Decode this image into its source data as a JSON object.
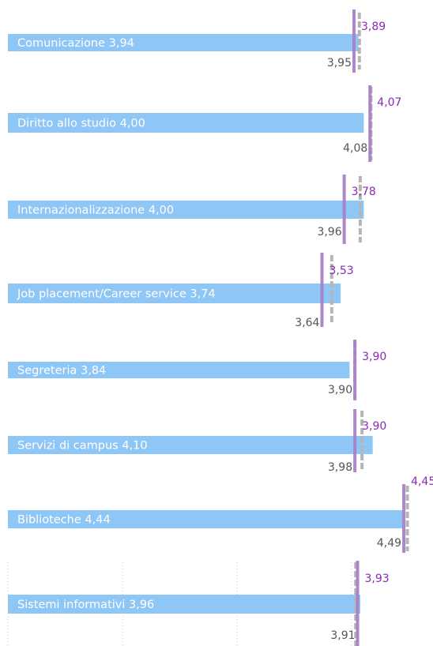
{
  "chart_data": {
    "type": "bar",
    "orientation": "horizontal",
    "grid": "vertical dotted (last panel only)",
    "colors": {
      "bar": "#8ec6f6",
      "purple_marker": "#a97fc8",
      "purple_text": "#8a2bb3",
      "grey_marker": "#b5b5b5",
      "grey_text": "#555555"
    },
    "rows": [
      {
        "label": "Comunicazione 3,94",
        "category": "Comunicazione",
        "bar_value": 3.94,
        "purple_value": 3.89,
        "purple_label": "3,89",
        "grey_value": 3.95,
        "grey_label": "3,95"
      },
      {
        "label": "Diritto allo studio 4,00",
        "category": "Diritto allo studio",
        "bar_value": 4.0,
        "purple_value": 4.07,
        "purple_label": "4,07",
        "grey_value": 4.08,
        "grey_label": "4,08"
      },
      {
        "label": "Internazionalizzazione 4,00",
        "category": "Internazionalizzazione",
        "bar_value": 4.0,
        "purple_value": 3.78,
        "purple_label": "3,78",
        "grey_value": 3.96,
        "grey_label": "3,96"
      },
      {
        "label": "Job placement/Career service 3,74",
        "category": "Job placement/Career service",
        "bar_value": 3.74,
        "purple_value": 3.53,
        "purple_label": "3,53",
        "grey_value": 3.64,
        "grey_label": "3,64"
      },
      {
        "label": "Segreteria 3,84",
        "category": "Segreteria",
        "bar_value": 3.84,
        "purple_value": 3.9,
        "purple_label": "3,90",
        "grey_value": 3.9,
        "grey_label": "3,90"
      },
      {
        "label": "Servizi di campus 4,10",
        "category": "Servizi di campus",
        "bar_value": 4.1,
        "purple_value": 3.9,
        "purple_label": "3,90",
        "grey_value": 3.98,
        "grey_label": "3,98"
      },
      {
        "label": "Biblioteche 4,44",
        "category": "Biblioteche",
        "bar_value": 4.44,
        "purple_value": 4.45,
        "purple_label": "4,45",
        "grey_value": 4.49,
        "grey_label": "4,49"
      },
      {
        "label": "Sistemi informativi 3,96",
        "category": "Sistemi informativi",
        "bar_value": 3.96,
        "purple_value": 3.93,
        "purple_label": "3,93",
        "grey_value": 3.91,
        "grey_label": "3,91"
      }
    ]
  }
}
